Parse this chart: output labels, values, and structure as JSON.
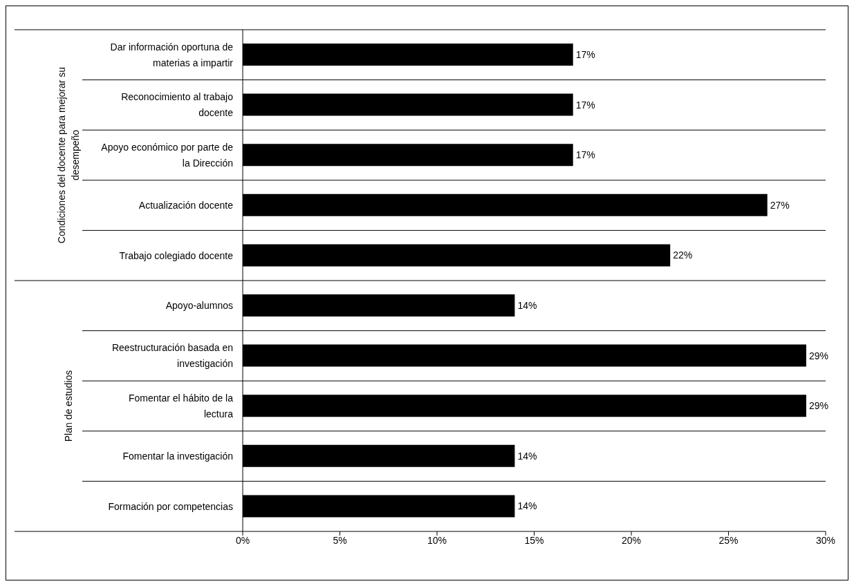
{
  "chart_data": {
    "type": "bar",
    "orientation": "horizontal",
    "categories": [
      "Dar información oportuna de materias a impartir",
      "Reconocimiento al trabajo docente",
      "Apoyo económico por parte de la Dirección",
      "Actualización docente",
      "Trabajo colegiado docente",
      "Apoyo-alumnos",
      "Reestructuración basada en investigación",
      "Fomentar el hábito de la lectura",
      "Fomentar la investigación",
      "Formación por competencias"
    ],
    "values": [
      17,
      17,
      17,
      27,
      22,
      14,
      29,
      29,
      14,
      14
    ],
    "value_labels": [
      "17%",
      "17%",
      "17%",
      "27%",
      "22%",
      "14%",
      "29%",
      "29%",
      "14%",
      "14%"
    ],
    "color": "#000000",
    "xlim": [
      0,
      30
    ],
    "xticks": [
      {
        "value": 0,
        "label": "0%"
      },
      {
        "value": 5,
        "label": "5%"
      },
      {
        "value": 10,
        "label": "10%"
      },
      {
        "value": 15,
        "label": "15%"
      },
      {
        "value": 20,
        "label": "20%"
      },
      {
        "value": 25,
        "label": "25%"
      },
      {
        "value": 30,
        "label": "30%"
      }
    ],
    "annotations": [
      "Condiciones del docente para mejorar su desempeño",
      "Plan de estudios"
    ]
  }
}
